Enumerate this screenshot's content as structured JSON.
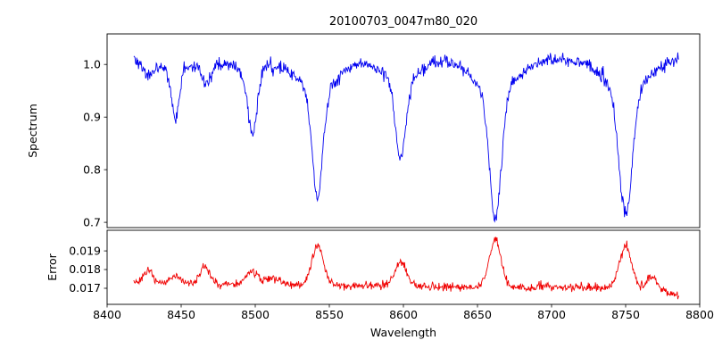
{
  "figure": {
    "title": "20100703_0047m80_020"
  },
  "chart_data": {
    "type": "line",
    "title": "20100703_0047m80_020",
    "xlabel": "Wavelength",
    "legend": "none",
    "grid": false,
    "xlim": [
      8400,
      8800
    ],
    "x_ticks": [
      8400,
      8450,
      8500,
      8550,
      8600,
      8650,
      8700,
      8750,
      8800
    ],
    "x_tick_labels": [
      "8400",
      "8450",
      "8500",
      "8550",
      "8600",
      "8650",
      "8700",
      "8750",
      "8800"
    ],
    "data_x_range": [
      8418,
      8786
    ],
    "sample_step": 0.4,
    "noise_seed": 20100703,
    "panels": [
      {
        "name": "spectrum",
        "ylabel": "Spectrum",
        "ylim": [
          0.69,
          1.058
        ],
        "y_ticks": [
          0.7,
          0.8,
          0.9,
          1.0
        ],
        "y_tick_labels": [
          "0.7",
          "0.8",
          "0.9",
          "1.0"
        ],
        "line_color": "#0000f0",
        "continuum": 1.01,
        "noise_sigma": 0.0062,
        "absorption_lines": [
          {
            "center": 8428,
            "depth": 0.025,
            "sigma": 3.0,
            "wing_depth": 0.005,
            "wing_sigma": 8
          },
          {
            "center": 8446,
            "depth": 0.09,
            "sigma": 2.5,
            "wing_depth": 0.02,
            "wing_sigma": 9
          },
          {
            "center": 8467,
            "depth": 0.035,
            "sigma": 3.0,
            "wing_depth": 0.01,
            "wing_sigma": 8
          },
          {
            "center": 8498,
            "depth": 0.115,
            "sigma": 3.0,
            "wing_depth": 0.028,
            "wing_sigma": 10
          },
          {
            "center": 8542,
            "depth": 0.2,
            "sigma": 3.5,
            "wing_depth": 0.062,
            "wing_sigma": 13
          },
          {
            "center": 8598,
            "depth": 0.145,
            "sigma": 3.5,
            "wing_depth": 0.042,
            "wing_sigma": 12
          },
          {
            "center": 8662,
            "depth": 0.24,
            "sigma": 4.0,
            "wing_depth": 0.062,
            "wing_sigma": 14
          },
          {
            "center": 8750,
            "depth": 0.235,
            "sigma": 4.5,
            "wing_depth": 0.058,
            "wing_sigma": 14
          }
        ]
      },
      {
        "name": "error",
        "ylabel": "Error",
        "ylim": [
          0.01614,
          0.0201
        ],
        "y_ticks": [
          0.017,
          0.018,
          0.019
        ],
        "y_tick_labels": [
          "0.017",
          "0.018",
          "0.019"
        ],
        "line_color": "#f00000",
        "noise_sigma": 0.00011,
        "baseline_points": [
          [
            8418,
            0.01735
          ],
          [
            8500,
            0.0172
          ],
          [
            8600,
            0.01712
          ],
          [
            8700,
            0.01705
          ],
          [
            8755,
            0.01705
          ],
          [
            8775,
            0.0169
          ],
          [
            8786,
            0.01658
          ]
        ],
        "bumps": [
          {
            "center": 8428,
            "amp": 0.0006,
            "sigma": 3
          },
          {
            "center": 8446,
            "amp": 0.0004,
            "sigma": 3
          },
          {
            "center": 8466,
            "amp": 0.0009,
            "sigma": 3
          },
          {
            "center": 8498,
            "amp": 0.0007,
            "sigma": 4
          },
          {
            "center": 8512,
            "amp": 0.0004,
            "sigma": 4
          },
          {
            "center": 8542,
            "amp": 0.0021,
            "sigma": 4
          },
          {
            "center": 8598,
            "amp": 0.0012,
            "sigma": 4
          },
          {
            "center": 8662,
            "amp": 0.0025,
            "sigma": 4
          },
          {
            "center": 8750,
            "amp": 0.0022,
            "sigma": 4
          },
          {
            "center": 8768,
            "amp": 0.0007,
            "sigma": 3
          }
        ]
      }
    ]
  }
}
